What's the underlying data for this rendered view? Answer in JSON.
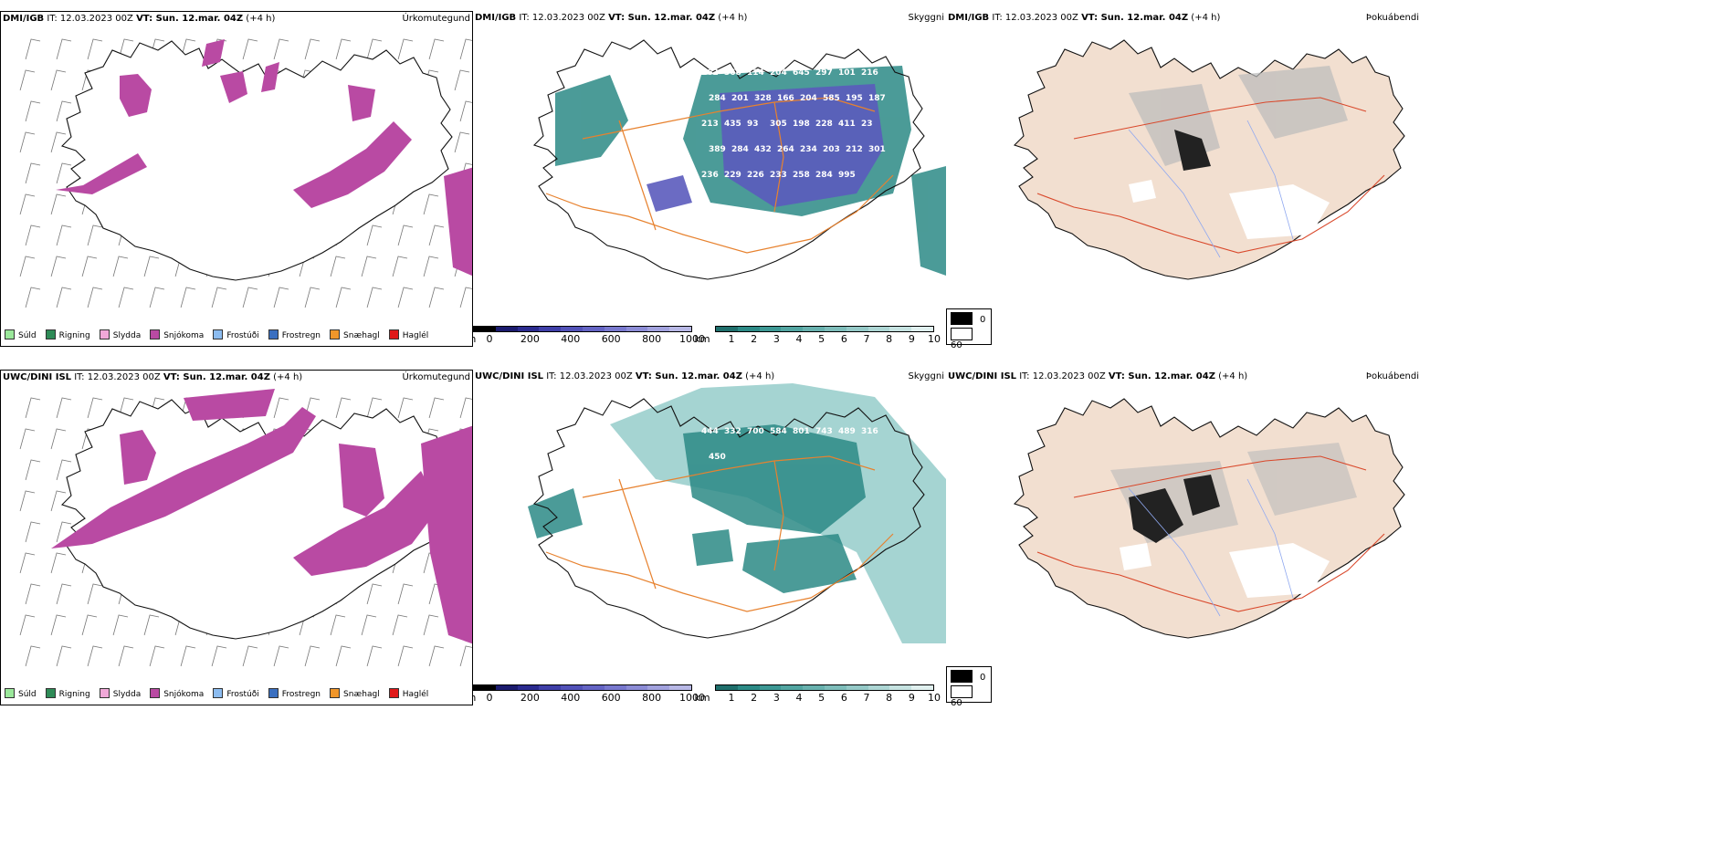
{
  "colors": {
    "snow": "#b94aa3",
    "cloud": "#2c8a86",
    "cloud_light": "#7fc2bf",
    "cloud_top": "#5b5bbd",
    "road": "#e7822f",
    "road_red": "#d9482b",
    "land": "#f2dfd0",
    "fog_dark": "#222222",
    "coast": "#111111"
  },
  "rows": [
    {
      "precip": {
        "model": "DMI/IGB",
        "it": " IT: 12.03.2023 00Z ",
        "vt_label": "VT: ",
        "vt": "Sun. 12.mar. 04Z",
        "lead": " (+4 h)",
        "title": "Úrkomutegund"
      },
      "cloud": {
        "model": "DMI/IGB",
        "it": " IT: 12.03.2023 00Z ",
        "vt_label": "VT: ",
        "vt": "Sun. 12.mar. 04Z",
        "lead": " (+4 h)",
        "title": "Skyggni"
      },
      "fog": {
        "model": "DMI/IGB",
        "it": " IT: 12.03.2023 00Z ",
        "vt_label": "VT: ",
        "vt": "Sun. 12.mar. 04Z",
        "lead": " (+4 h)",
        "title": "Þokuábendi"
      },
      "cloud_labels": [
        "162",
        "368",
        "114",
        "204",
        "645",
        "297",
        "101",
        "216",
        "284",
        "201",
        "328",
        "166",
        "204",
        "585",
        "195",
        "187",
        "213",
        "435",
        "93",
        "305",
        "198",
        "228",
        "411",
        "23",
        "389",
        "284",
        "432",
        "264",
        "234",
        "203",
        "212",
        "301",
        "236",
        "229",
        "226",
        "233",
        "258",
        "284",
        "995"
      ]
    },
    {
      "precip": {
        "model": "UWC/DINI ISL",
        "it": " IT: 12.03.2023 00Z ",
        "vt_label": "VT: ",
        "vt": "Sun. 12.mar. 04Z",
        "lead": " (+4 h)",
        "title": "Úrkomutegund"
      },
      "cloud": {
        "model": "UWC/DINI ISL",
        "it": " IT: 12.03.2023 00Z ",
        "vt_label": "VT: ",
        "vt": "Sun. 12.mar. 04Z",
        "lead": " (+4 h)",
        "title": "Skyggni"
      },
      "fog": {
        "model": "UWC/DINI ISL",
        "it": " IT: 12.03.2023 00Z ",
        "vt_label": "VT: ",
        "vt": "Sun. 12.mar. 04Z",
        "lead": " (+4 h)",
        "title": "Þokuábendi"
      },
      "cloud_labels": [
        "444",
        "332",
        "700",
        "584",
        "801",
        "743",
        "489",
        "316",
        "450"
      ]
    }
  ],
  "precip_legend": [
    {
      "label": "Súld",
      "color": "#9be89b"
    },
    {
      "label": "Rigning",
      "color": "#2e8b57"
    },
    {
      "label": "Slydda",
      "color": "#f0a8d8"
    },
    {
      "label": "Snjókoma",
      "color": "#b94aa3"
    },
    {
      "label": "Frostúði",
      "color": "#8cbcf0"
    },
    {
      "label": "Frostregn",
      "color": "#3a6fc0"
    },
    {
      "label": "Snæhagl",
      "color": "#f0962a"
    },
    {
      "label": "Haglél",
      "color": "#e01818"
    }
  ],
  "cbar_m": {
    "unit": "m",
    "ticks": [
      "0",
      "200",
      "400",
      "600",
      "800",
      "1000"
    ],
    "colors": [
      "#000000",
      "#1b1b6e",
      "#2b2b8f",
      "#3f3fa8",
      "#5252b8",
      "#6464c4",
      "#7878ce",
      "#8c8cd6",
      "#a2a2de",
      "#b8b8e6"
    ]
  },
  "cbar_km": {
    "unit": "km",
    "ticks": [
      "1",
      "2",
      "3",
      "4",
      "5",
      "6",
      "7",
      "8",
      "9",
      "10"
    ],
    "colors": [
      "#1f6f6c",
      "#2c8a86",
      "#3d9894",
      "#52a5a1",
      "#68b1ae",
      "#7ebdba",
      "#95c9c7",
      "#add6d4",
      "#c6e3e1",
      "#e0f0ef"
    ]
  },
  "fog_legend": [
    {
      "label": "0",
      "color": "#000000"
    },
    {
      "label": "60",
      "color": "#ffffff"
    }
  ]
}
